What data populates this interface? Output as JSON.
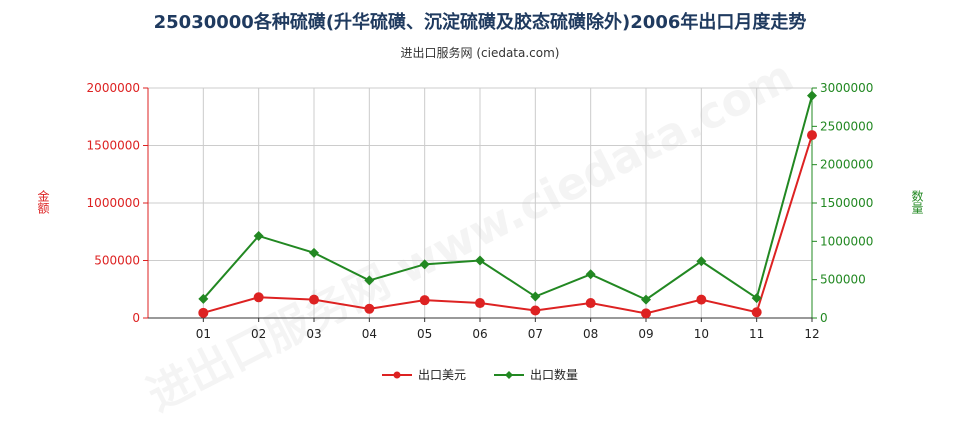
{
  "title": "25030000各种硫磺(升华硫磺、沉淀硫磺及胶态硫磺除外)2006年出口月度走势",
  "subtitle": "进出口服务网 (ciedata.com)",
  "watermark": "进出口服务网 www.ciedata.com",
  "colors": {
    "left_series": "#dd2222",
    "right_series": "#228822",
    "grid": "#cccccc",
    "axis": "#333333"
  },
  "chart_data": {
    "type": "line",
    "categories": [
      "01",
      "02",
      "03",
      "04",
      "05",
      "06",
      "07",
      "08",
      "09",
      "10",
      "11",
      "12"
    ],
    "ylabel_left": "金额",
    "ylabel_right": "数量",
    "ylim_left": [
      0,
      2000000
    ],
    "ylim_right": [
      0,
      3000000
    ],
    "yticks_left": [
      "0",
      "500000",
      "1000000",
      "1500000",
      "2000000"
    ],
    "yticks_right": [
      "0",
      "500000",
      "1000000",
      "1500000",
      "2000000",
      "2500000",
      "3000000"
    ],
    "grid": true,
    "legend_position": "bottom",
    "series": [
      {
        "name": "出口美元",
        "axis": "left",
        "values": [
          45000,
          180000,
          160000,
          80000,
          155000,
          130000,
          65000,
          130000,
          40000,
          160000,
          50000,
          1590000
        ]
      },
      {
        "name": "出口数量",
        "axis": "right",
        "values": [
          250000,
          1070000,
          850000,
          490000,
          700000,
          750000,
          280000,
          570000,
          240000,
          740000,
          260000,
          2900000
        ]
      }
    ]
  }
}
